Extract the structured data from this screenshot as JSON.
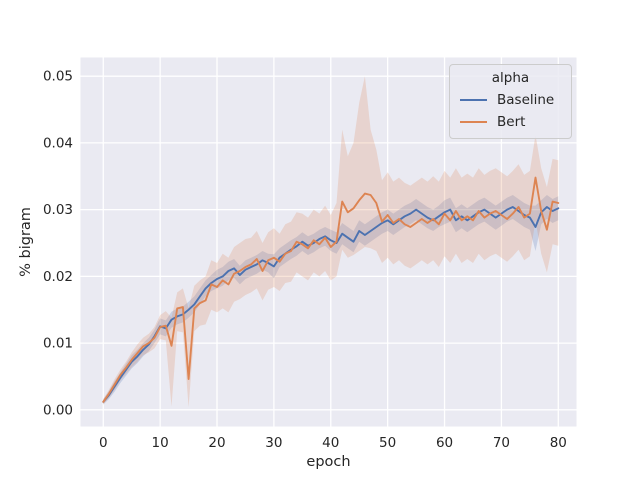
{
  "figure": {
    "background": "#ffffff",
    "plot_background": "#eaeaf2",
    "grid_color": "#ffffff",
    "text_color": "#262626"
  },
  "chart_data": {
    "type": "line",
    "title": "",
    "xlabel": "epoch",
    "ylabel": "% bigram",
    "grid": true,
    "legend_position": "upper right",
    "legend": {
      "title": "alpha"
    },
    "xlim": [
      -4.0,
      83.2
    ],
    "ylim": [
      -0.0025,
      0.0528
    ],
    "x_ticks": [
      0,
      10,
      20,
      30,
      40,
      50,
      60,
      70,
      80
    ],
    "y_tick_values": [
      0.0,
      0.01,
      0.02,
      0.03,
      0.04,
      0.05
    ],
    "y_ticks": [
      "0.00",
      "0.01",
      "0.02",
      "0.03",
      "0.04",
      "0.05"
    ],
    "x": [
      0,
      1,
      2,
      3,
      4,
      5,
      6,
      7,
      8,
      9,
      10,
      11,
      12,
      13,
      14,
      15,
      16,
      17,
      18,
      19,
      20,
      21,
      22,
      23,
      24,
      25,
      26,
      27,
      28,
      29,
      30,
      31,
      32,
      33,
      34,
      35,
      36,
      37,
      38,
      39,
      40,
      41,
      42,
      43,
      44,
      45,
      46,
      47,
      48,
      49,
      50,
      51,
      52,
      53,
      54,
      55,
      56,
      57,
      58,
      59,
      60,
      61,
      62,
      63,
      64,
      65,
      66,
      67,
      68,
      69,
      70,
      71,
      72,
      73,
      74,
      75,
      76,
      77,
      78,
      79,
      80
    ],
    "series": [
      {
        "name": "Baseline",
        "color": "#4c72b0",
        "band_opacity": 0.22,
        "values": [
          0.0012,
          0.0022,
          0.0035,
          0.0048,
          0.006,
          0.0072,
          0.008,
          0.009,
          0.0098,
          0.011,
          0.0125,
          0.0122,
          0.0135,
          0.014,
          0.0143,
          0.015,
          0.0158,
          0.017,
          0.0182,
          0.019,
          0.0196,
          0.02,
          0.0208,
          0.0212,
          0.0202,
          0.021,
          0.0214,
          0.0218,
          0.0224,
          0.022,
          0.0215,
          0.0228,
          0.0234,
          0.024,
          0.0245,
          0.0252,
          0.0246,
          0.025,
          0.0256,
          0.026,
          0.0254,
          0.025,
          0.0264,
          0.0258,
          0.0252,
          0.0268,
          0.0262,
          0.0268,
          0.0274,
          0.028,
          0.0284,
          0.0278,
          0.0284,
          0.029,
          0.0294,
          0.03,
          0.0294,
          0.0288,
          0.0284,
          0.029,
          0.0296,
          0.03,
          0.0284,
          0.029,
          0.0284,
          0.029,
          0.0296,
          0.03,
          0.0294,
          0.0288,
          0.0294,
          0.03,
          0.0304,
          0.0298,
          0.0292,
          0.0288,
          0.0274,
          0.0296,
          0.0304,
          0.0298,
          0.0302
        ],
        "band_low": [
          0.0008,
          0.0016,
          0.0027,
          0.004,
          0.0051,
          0.0062,
          0.007,
          0.008,
          0.0088,
          0.01,
          0.0113,
          0.011,
          0.0123,
          0.0128,
          0.0131,
          0.0138,
          0.0146,
          0.0158,
          0.017,
          0.0178,
          0.0182,
          0.0186,
          0.0194,
          0.0198,
          0.0188,
          0.0196,
          0.02,
          0.0204,
          0.021,
          0.0206,
          0.0197,
          0.0214,
          0.022,
          0.0226,
          0.0231,
          0.0238,
          0.0232,
          0.0236,
          0.0242,
          0.0246,
          0.0238,
          0.0234,
          0.0248,
          0.0242,
          0.0236,
          0.0252,
          0.0246,
          0.0252,
          0.0258,
          0.0264,
          0.0268,
          0.0262,
          0.0268,
          0.0274,
          0.0278,
          0.0284,
          0.0278,
          0.0272,
          0.0268,
          0.0274,
          0.0278,
          0.0282,
          0.0266,
          0.0272,
          0.0266,
          0.0272,
          0.0278,
          0.0282,
          0.0276,
          0.027,
          0.0276,
          0.0282,
          0.0286,
          0.028,
          0.0274,
          0.027,
          0.0238,
          0.0278,
          0.0286,
          0.028,
          0.0284
        ],
        "band_high": [
          0.0016,
          0.0028,
          0.0043,
          0.0056,
          0.0069,
          0.0082,
          0.009,
          0.01,
          0.0108,
          0.012,
          0.0137,
          0.0134,
          0.0147,
          0.0152,
          0.0155,
          0.0162,
          0.017,
          0.0182,
          0.0194,
          0.0202,
          0.021,
          0.0214,
          0.0222,
          0.0226,
          0.0216,
          0.0224,
          0.0228,
          0.0232,
          0.0238,
          0.0234,
          0.0233,
          0.0242,
          0.0248,
          0.0254,
          0.0259,
          0.0266,
          0.026,
          0.0264,
          0.027,
          0.0274,
          0.027,
          0.0266,
          0.028,
          0.0274,
          0.0268,
          0.0284,
          0.0278,
          0.0284,
          0.029,
          0.0296,
          0.03,
          0.0294,
          0.03,
          0.0306,
          0.031,
          0.0316,
          0.031,
          0.0304,
          0.03,
          0.0306,
          0.0314,
          0.0318,
          0.0302,
          0.0308,
          0.0302,
          0.0308,
          0.0314,
          0.0318,
          0.0312,
          0.0306,
          0.0312,
          0.0318,
          0.0322,
          0.0316,
          0.031,
          0.0306,
          0.0306,
          0.0314,
          0.0322,
          0.0316,
          0.032
        ]
      },
      {
        "name": "Bert",
        "color": "#dd8452",
        "band_opacity": 0.22,
        "values": [
          0.0012,
          0.0024,
          0.0038,
          0.0052,
          0.0063,
          0.0075,
          0.0085,
          0.0095,
          0.01,
          0.0108,
          0.0124,
          0.0126,
          0.0096,
          0.0152,
          0.0154,
          0.0046,
          0.0152,
          0.016,
          0.0164,
          0.0188,
          0.0184,
          0.0194,
          0.0188,
          0.0204,
          0.0208,
          0.0214,
          0.0218,
          0.0226,
          0.0208,
          0.0224,
          0.0228,
          0.0222,
          0.0234,
          0.0238,
          0.0252,
          0.0248,
          0.0242,
          0.0254,
          0.0248,
          0.0258,
          0.0244,
          0.0252,
          0.0312,
          0.0296,
          0.0302,
          0.0314,
          0.0324,
          0.0322,
          0.031,
          0.0282,
          0.0292,
          0.028,
          0.0286,
          0.0278,
          0.0274,
          0.028,
          0.0286,
          0.028,
          0.0286,
          0.0278,
          0.0294,
          0.0284,
          0.0298,
          0.0284,
          0.029,
          0.0284,
          0.0298,
          0.0288,
          0.0294,
          0.0298,
          0.0292,
          0.0286,
          0.0294,
          0.0304,
          0.0288,
          0.0294,
          0.0348,
          0.0298,
          0.027,
          0.0312,
          0.031
        ],
        "band_low": [
          0.0008,
          0.0018,
          0.003,
          0.0044,
          0.0054,
          0.0064,
          0.0072,
          0.0082,
          0.0086,
          0.0092,
          0.0106,
          0.0104,
          0.0005,
          0.0118,
          0.0116,
          0.0004,
          0.0118,
          0.0126,
          0.0128,
          0.015,
          0.0146,
          0.0152,
          0.0146,
          0.0162,
          0.0166,
          0.0172,
          0.0176,
          0.0182,
          0.0164,
          0.018,
          0.0184,
          0.0178,
          0.019,
          0.0192,
          0.0206,
          0.02,
          0.0194,
          0.0206,
          0.02,
          0.0208,
          0.0194,
          0.02,
          0.024,
          0.0228,
          0.0232,
          0.0238,
          0.0244,
          0.0242,
          0.0238,
          0.022,
          0.0228,
          0.0218,
          0.0224,
          0.0216,
          0.0212,
          0.0218,
          0.0224,
          0.0218,
          0.0224,
          0.0214,
          0.023,
          0.022,
          0.0234,
          0.022,
          0.0226,
          0.022,
          0.0234,
          0.0224,
          0.023,
          0.0234,
          0.0228,
          0.0222,
          0.023,
          0.024,
          0.0224,
          0.023,
          0.0284,
          0.0234,
          0.0206,
          0.0248,
          0.0246
        ],
        "band_high": [
          0.0016,
          0.003,
          0.0046,
          0.006,
          0.0072,
          0.0086,
          0.0098,
          0.0108,
          0.0114,
          0.0124,
          0.0142,
          0.0148,
          0.0138,
          0.0176,
          0.0182,
          0.0152,
          0.0186,
          0.0194,
          0.02,
          0.0224,
          0.022,
          0.0234,
          0.0228,
          0.0244,
          0.025,
          0.0256,
          0.0258,
          0.0268,
          0.025,
          0.0266,
          0.0272,
          0.0264,
          0.0278,
          0.0282,
          0.0296,
          0.0294,
          0.0288,
          0.03,
          0.0294,
          0.0306,
          0.0292,
          0.031,
          0.042,
          0.038,
          0.04,
          0.046,
          0.05,
          0.042,
          0.039,
          0.0344,
          0.0356,
          0.0342,
          0.0348,
          0.034,
          0.0336,
          0.0342,
          0.0348,
          0.0342,
          0.035,
          0.0342,
          0.0358,
          0.0348,
          0.0362,
          0.0348,
          0.0354,
          0.0348,
          0.0362,
          0.0352,
          0.0358,
          0.0362,
          0.0356,
          0.035,
          0.0358,
          0.0368,
          0.0352,
          0.0358,
          0.0412,
          0.0362,
          0.0334,
          0.0376,
          0.0374
        ]
      }
    ]
  }
}
